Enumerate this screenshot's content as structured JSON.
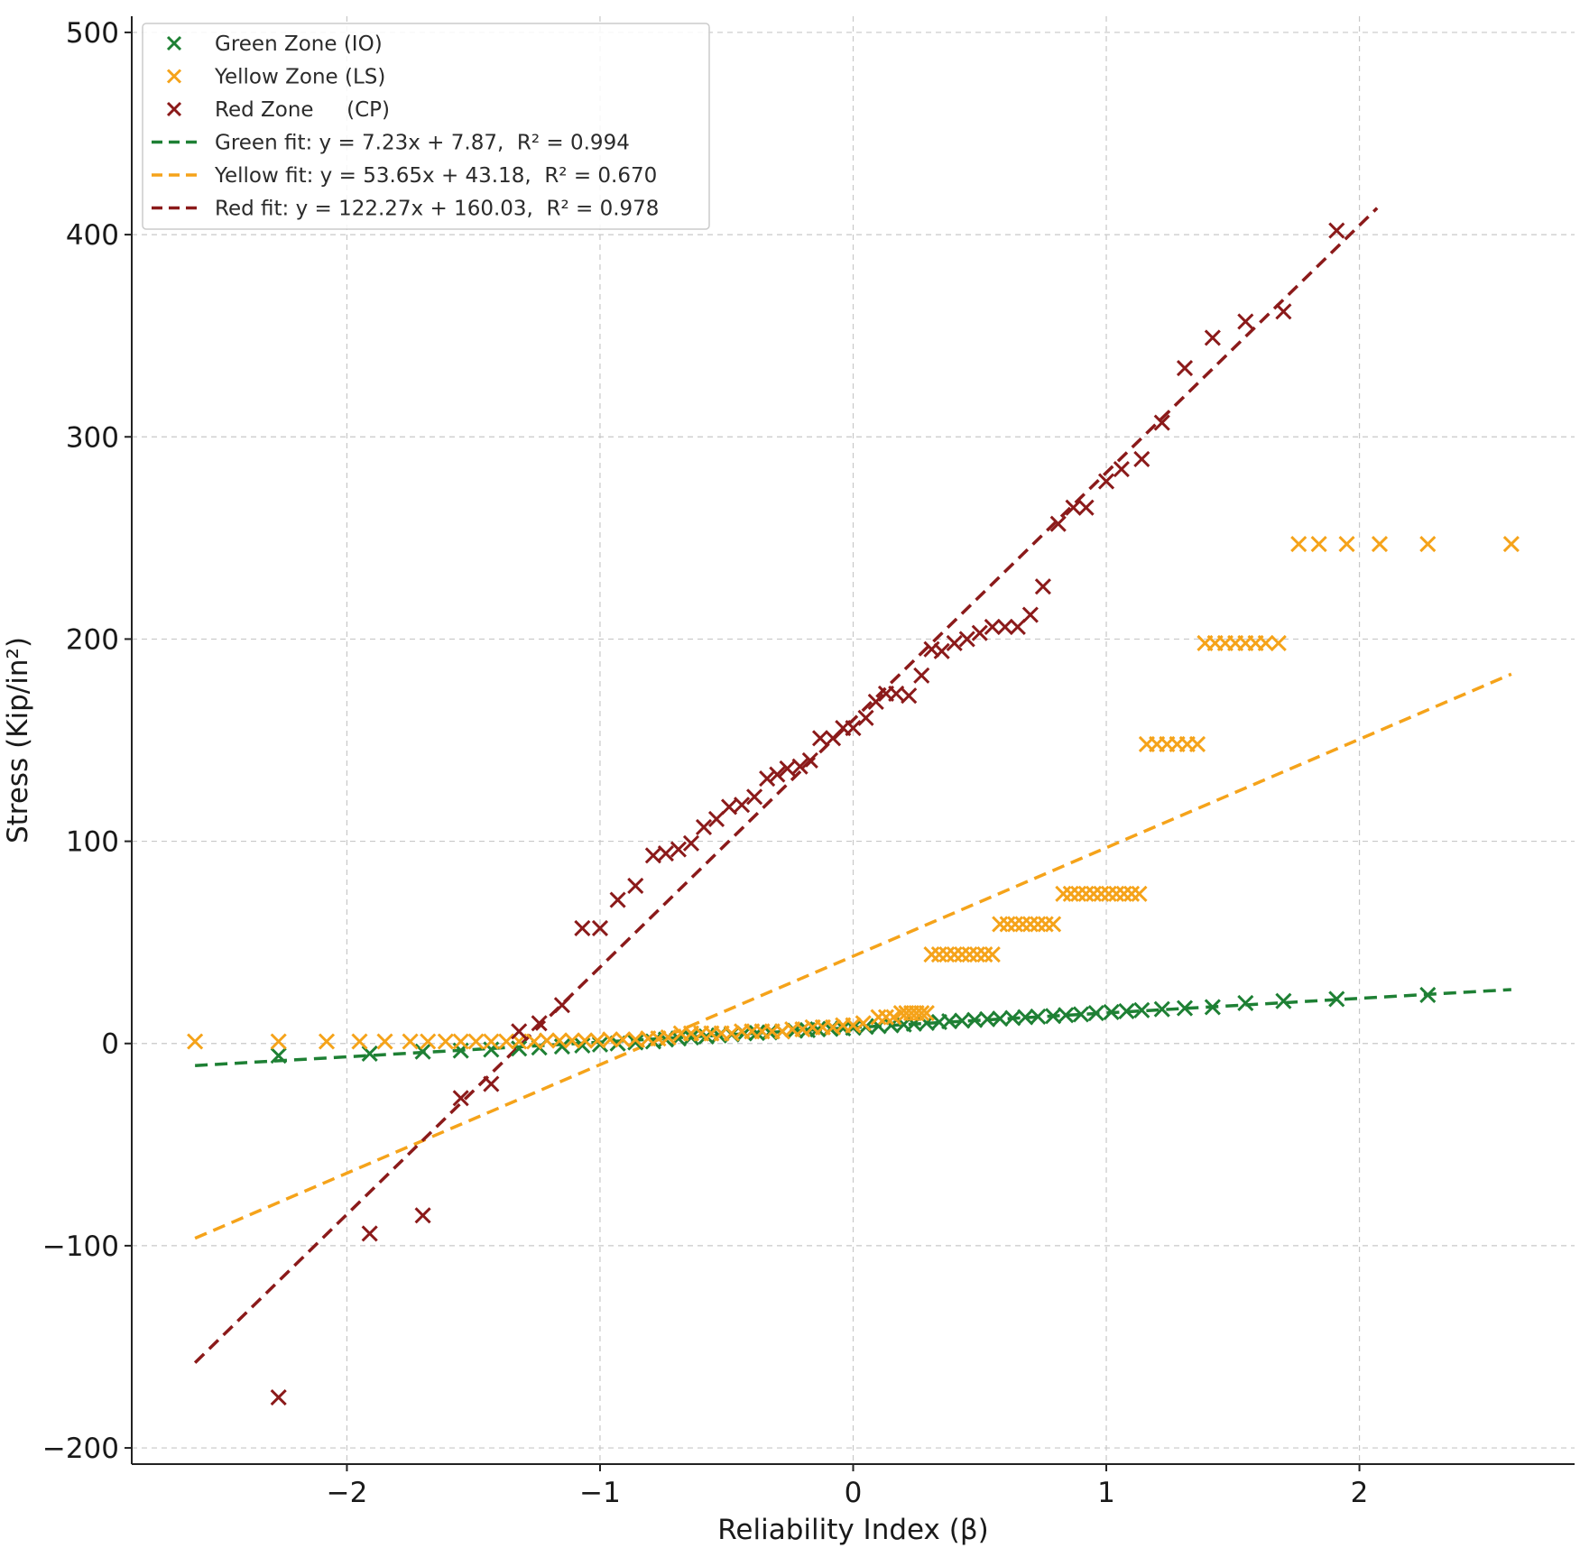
{
  "chart_data": {
    "type": "scatter",
    "title": "",
    "xlabel": "Reliability Index (β)",
    "ylabel": "Stress (Kip/in²)",
    "xlim": [
      -2.85,
      2.85
    ],
    "ylim": [
      -208,
      508
    ],
    "xticks": [
      -2,
      -1,
      0,
      1,
      2
    ],
    "xtick_labels": [
      "−2",
      "−1",
      "0",
      "1",
      "2"
    ],
    "yticks": [
      -200,
      -100,
      0,
      100,
      200,
      300,
      400,
      500
    ],
    "ytick_labels": [
      "−200",
      "−100",
      "0",
      "100",
      "200",
      "300",
      "400",
      "500"
    ],
    "grid": true,
    "legend_position": "top-left",
    "colors": {
      "green": "#1e8034",
      "yellow": "#f5a31a",
      "red": "#8b1a1a"
    },
    "series": [
      {
        "name": "Green Zone (IO)",
        "kind": "scatter",
        "color": "#1e8034",
        "x": [
          -2.27,
          -1.91,
          -1.7,
          -1.55,
          -1.43,
          -1.32,
          -1.24,
          -1.15,
          -1.07,
          -1.0,
          -0.93,
          -0.86,
          -0.79,
          -0.74,
          -0.69,
          -0.64,
          -0.58,
          -0.53,
          -0.48,
          -0.43,
          -0.38,
          -0.33,
          -0.28,
          -0.23,
          -0.18,
          -0.14,
          -0.09,
          -0.04,
          0.0,
          0.05,
          0.1,
          0.15,
          0.2,
          0.24,
          0.29,
          0.34,
          0.38,
          0.43,
          0.48,
          0.53,
          0.58,
          0.63,
          0.68,
          0.73,
          0.79,
          0.84,
          0.9,
          0.96,
          1.02,
          1.08,
          1.14,
          1.22,
          1.31,
          1.42,
          1.55,
          1.7,
          1.91,
          2.27
        ],
        "y": [
          -6,
          -5,
          -4,
          -3.5,
          -3,
          -2.5,
          -2,
          -1.5,
          -1,
          -0.5,
          0,
          0.5,
          1,
          2,
          2.5,
          3,
          3.5,
          4,
          4.5,
          5,
          5.2,
          5.5,
          6,
          6.3,
          6.6,
          7,
          7.2,
          7.5,
          7.8,
          8.2,
          8.6,
          9,
          9.4,
          9.8,
          10.2,
          10.6,
          11,
          11.3,
          11.6,
          12,
          12.3,
          12.6,
          13,
          13.3,
          13.6,
          14,
          14.4,
          15,
          15.5,
          16,
          16.5,
          17,
          17.5,
          18,
          20,
          21,
          22,
          24
        ]
      },
      {
        "name": "Yellow Zone (LS)",
        "kind": "scatter",
        "color": "#f5a31a",
        "x": [
          -2.6,
          -2.27,
          -2.08,
          -1.95,
          -1.85,
          -1.75,
          -1.68,
          -1.61,
          -1.55,
          -1.49,
          -1.43,
          -1.37,
          -1.32,
          -1.26,
          -1.21,
          -1.16,
          -1.11,
          -1.06,
          -1.01,
          -0.96,
          -0.91,
          -0.86,
          -0.81,
          -0.77,
          -0.73,
          -0.68,
          -0.64,
          -0.6,
          -0.56,
          -0.52,
          -0.48,
          -0.44,
          -0.4,
          -0.36,
          -0.32,
          -0.28,
          -0.24,
          -0.2,
          -0.16,
          -0.12,
          -0.08,
          -0.04,
          0.0,
          0.04,
          0.1,
          0.13,
          0.16,
          0.19,
          0.21,
          0.23,
          0.25,
          0.27,
          0.29,
          0.31,
          0.34,
          0.37,
          0.4,
          0.43,
          0.46,
          0.49,
          0.52,
          0.55,
          0.58,
          0.61,
          0.64,
          0.67,
          0.7,
          0.73,
          0.76,
          0.79,
          0.83,
          0.86,
          0.89,
          0.92,
          0.95,
          0.98,
          1.01,
          1.04,
          1.07,
          1.1,
          1.13,
          1.16,
          1.2,
          1.24,
          1.28,
          1.32,
          1.36,
          1.39,
          1.43,
          1.47,
          1.51,
          1.55,
          1.59,
          1.63,
          1.68,
          1.76,
          1.84,
          1.95,
          2.08,
          2.27,
          2.6
        ],
        "y": [
          1,
          1,
          1,
          1,
          1,
          1,
          1,
          1,
          1,
          1,
          1,
          1,
          1,
          1,
          1.5,
          1.5,
          1.5,
          1.5,
          1.5,
          2,
          2,
          2,
          2.5,
          2.5,
          3,
          5,
          5,
          5,
          5,
          5,
          5,
          6,
          6,
          6,
          6,
          6,
          7,
          7,
          8,
          8,
          8,
          9,
          9,
          10,
          13,
          13,
          13,
          15,
          15,
          15,
          15,
          15,
          15,
          44,
          44,
          44,
          44,
          44,
          44,
          44,
          44,
          44,
          59,
          59,
          59,
          59,
          59,
          59,
          59,
          59,
          74,
          74,
          74,
          74,
          74,
          74,
          74,
          74,
          74,
          74,
          74,
          148,
          148,
          148,
          148,
          148,
          148,
          198,
          198,
          198,
          198,
          198,
          198,
          198,
          198,
          247,
          247,
          247,
          247,
          247,
          247
        ]
      },
      {
        "name": "Red Zone     (CP)",
        "kind": "scatter",
        "color": "#8b1a1a",
        "x": [
          -2.27,
          -1.91,
          -1.7,
          -1.55,
          -1.43,
          -1.32,
          -1.24,
          -1.15,
          -1.07,
          -1.0,
          -0.93,
          -0.86,
          -0.79,
          -0.74,
          -0.69,
          -0.64,
          -0.59,
          -0.54,
          -0.49,
          -0.44,
          -0.39,
          -0.34,
          -0.3,
          -0.26,
          -0.21,
          -0.17,
          -0.13,
          -0.08,
          -0.04,
          0.0,
          0.05,
          0.09,
          0.13,
          0.17,
          0.22,
          0.27,
          0.31,
          0.35,
          0.4,
          0.45,
          0.5,
          0.55,
          0.6,
          0.65,
          0.7,
          0.75,
          0.81,
          0.87,
          0.92,
          1.0,
          1.06,
          1.14,
          1.22,
          1.31,
          1.42,
          1.55,
          1.7,
          1.91
        ],
        "y": [
          -175,
          -94,
          -85,
          -27,
          -20,
          6,
          10,
          19,
          57,
          57,
          71,
          78,
          93,
          94,
          96,
          99,
          107,
          111,
          117,
          118,
          122,
          131,
          133,
          136,
          137,
          140,
          151,
          151,
          156,
          156,
          161,
          169,
          173,
          173,
          172,
          182,
          195,
          194,
          198,
          200,
          203,
          206,
          206,
          206,
          212,
          226,
          257,
          265,
          265,
          278,
          284,
          289,
          307,
          334,
          349,
          357,
          362,
          402
        ]
      },
      {
        "name": "Green fit: y = 7.23x + 7.87,  R² = 0.994",
        "kind": "fit",
        "color": "#1e8034",
        "slope": 7.23,
        "intercept": 7.87,
        "x_range": [
          -2.6,
          2.6
        ]
      },
      {
        "name": "Yellow fit: y = 53.65x + 43.18,  R² = 0.670",
        "kind": "fit",
        "color": "#f5a31a",
        "slope": 53.65,
        "intercept": 43.18,
        "x_range": [
          -2.6,
          2.6
        ]
      },
      {
        "name": "Red fit: y = 122.27x + 160.03,  R² = 0.978",
        "kind": "fit",
        "color": "#8b1a1a",
        "slope": 122.27,
        "intercept": 160.03,
        "x_range": [
          -2.6,
          2.07
        ]
      }
    ]
  }
}
